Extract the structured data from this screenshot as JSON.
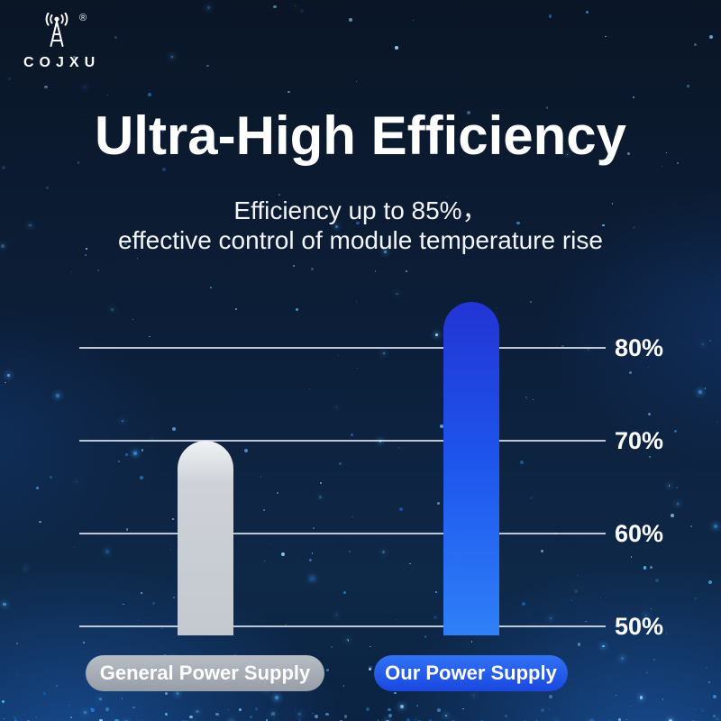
{
  "logo": {
    "brand": "COJXU",
    "registered": "®",
    "icon": "antenna-broadcast-icon"
  },
  "header": {
    "title": "Ultra-High Efficiency",
    "subtitle_line1": "Efficiency up to 85%，",
    "subtitle_line2": "effective control of module temperature rise"
  },
  "chart_data": {
    "type": "bar",
    "categories": [
      "General Power Supply",
      "Our Power Supply"
    ],
    "values": [
      70,
      85
    ],
    "ylim": [
      50,
      90
    ],
    "yticks": [
      80,
      70,
      60,
      50
    ],
    "ytick_suffix": "%",
    "grid": true,
    "legend_position": "bottom",
    "bar_colors": [
      "#c9cdd4",
      "#2257ee"
    ],
    "title": "Ultra-High Efficiency"
  },
  "colors": {
    "background": "#0c1e38",
    "accent_blue": "#2257ee",
    "neutral_gray": "#a7adb5",
    "particle_blue": "#4fc3f7",
    "text": "#ffffff"
  }
}
